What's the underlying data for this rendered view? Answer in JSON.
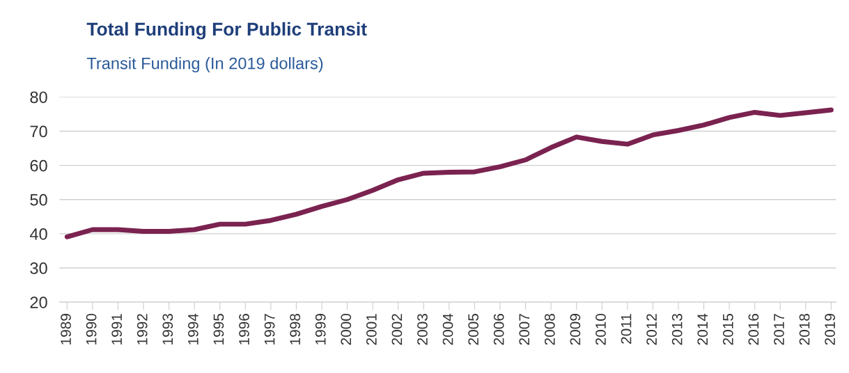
{
  "chart_data": {
    "type": "line",
    "title": "Total Funding For Public Transit",
    "subtitle": "Transit Funding (In 2019 dollars)",
    "categories": [
      "1989",
      "1990",
      "1991",
      "1992",
      "1993",
      "1994",
      "1995",
      "1996",
      "1997",
      "1998",
      "1999",
      "2000",
      "2001",
      "2002",
      "2003",
      "2004",
      "2005",
      "2006",
      "2007",
      "2008",
      "2009",
      "2010",
      "2011",
      "2012",
      "2013",
      "2014",
      "2015",
      "2016",
      "2017",
      "2018",
      "2019"
    ],
    "series": [
      {
        "color": "#7a2250",
        "values": [
          39.1,
          41.2,
          41.2,
          40.7,
          40.7,
          41.2,
          42.8,
          42.8,
          43.9,
          45.7,
          48,
          50,
          52.7,
          55.8,
          57.7,
          58,
          58.1,
          59.6,
          61.6,
          65.2,
          68.3,
          67,
          66.2,
          68.9,
          70.2,
          71.8,
          74,
          75.5,
          74.6,
          75.4,
          76.2
        ]
      }
    ],
    "ylim": [
      20,
      80
    ],
    "yticks": [
      20,
      30,
      40,
      50,
      60,
      70,
      80
    ],
    "grid": "y",
    "marker": "none",
    "line_style": "solid"
  }
}
